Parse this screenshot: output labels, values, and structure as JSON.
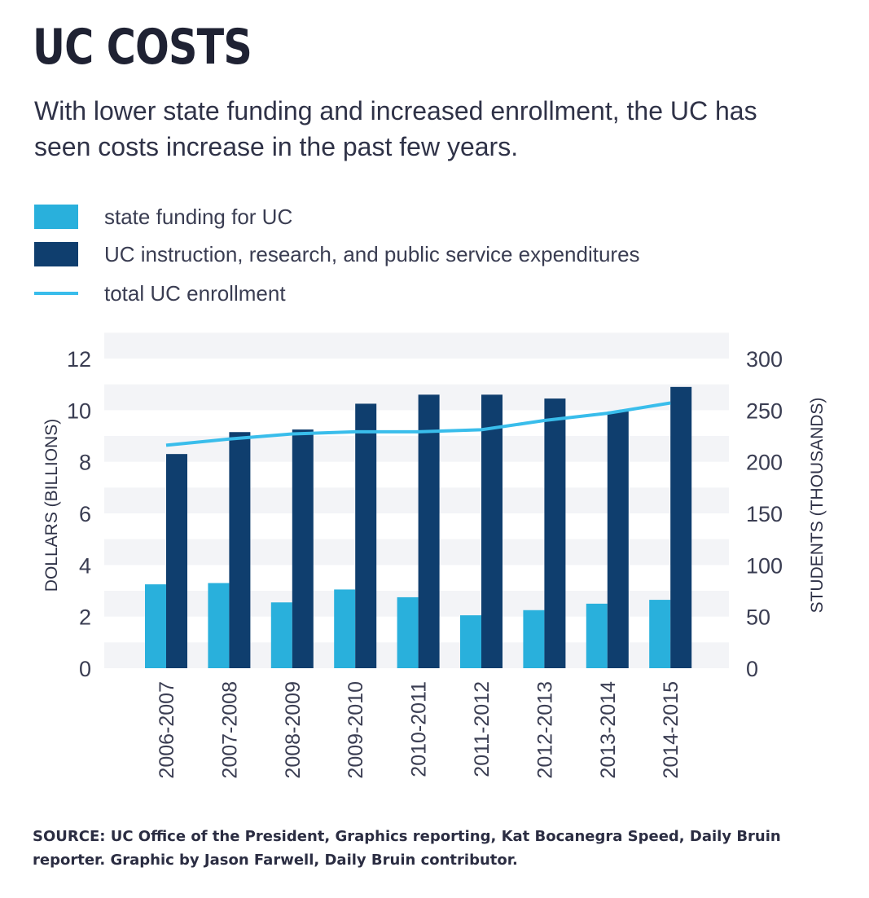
{
  "title": "UC COSTS",
  "subtitle": "With lower state funding and increased enrollment, the UC has seen costs increase in the past few years.",
  "legend": [
    {
      "label": "state funding for UC",
      "kind": "box",
      "color": "#29b0dc"
    },
    {
      "label": "UC instruction, research, and public service expenditures",
      "kind": "box",
      "color": "#0f3e6e"
    },
    {
      "label": "total UC enrollment",
      "kind": "line",
      "color": "#39bdeb"
    }
  ],
  "source": "SOURCE: UC Office of the President, Graphics reporting, Kat Bocanegra Speed, Daily Bruin reporter. Graphic by Jason Farwell, Daily Bruin contributor.",
  "chart_data": {
    "type": "bar",
    "categories": [
      "2006-2007",
      "2007-2008",
      "2008-2009",
      "2009-2010",
      "2010-2011",
      "2011-2012",
      "2012-2013",
      "2013-2014",
      "2014-2015"
    ],
    "series": [
      {
        "name": "state funding for UC",
        "type": "bar",
        "axis": "left",
        "color": "#29b0dc",
        "values": [
          3.25,
          3.3,
          2.55,
          3.05,
          2.75,
          2.05,
          2.25,
          2.5,
          2.65
        ]
      },
      {
        "name": "UC instruction, research, and public service expenditures",
        "type": "bar",
        "axis": "left",
        "color": "#0f3e6e",
        "values": [
          8.3,
          9.15,
          9.25,
          10.25,
          10.6,
          10.6,
          10.45,
          9.95,
          10.9
        ]
      },
      {
        "name": "total UC enrollment",
        "type": "line",
        "axis": "right",
        "color": "#39bdeb",
        "values": [
          216,
          222,
          227,
          229,
          229,
          231,
          240,
          247,
          257
        ]
      }
    ],
    "ylabel": "DOLLARS (BILLIONS)",
    "ylabel_right": "STUDENTS (THOUSANDS)",
    "ylim": [
      0,
      12
    ],
    "ylim_right": [
      0,
      300
    ],
    "yticks": [
      "0",
      "2",
      "4",
      "6",
      "8",
      "10",
      "12"
    ],
    "yticks_right": [
      "0",
      "50",
      "100",
      "150",
      "200",
      "250",
      "300"
    ],
    "grid": "alternating horizontal bands",
    "legend_position": "top-left"
  }
}
